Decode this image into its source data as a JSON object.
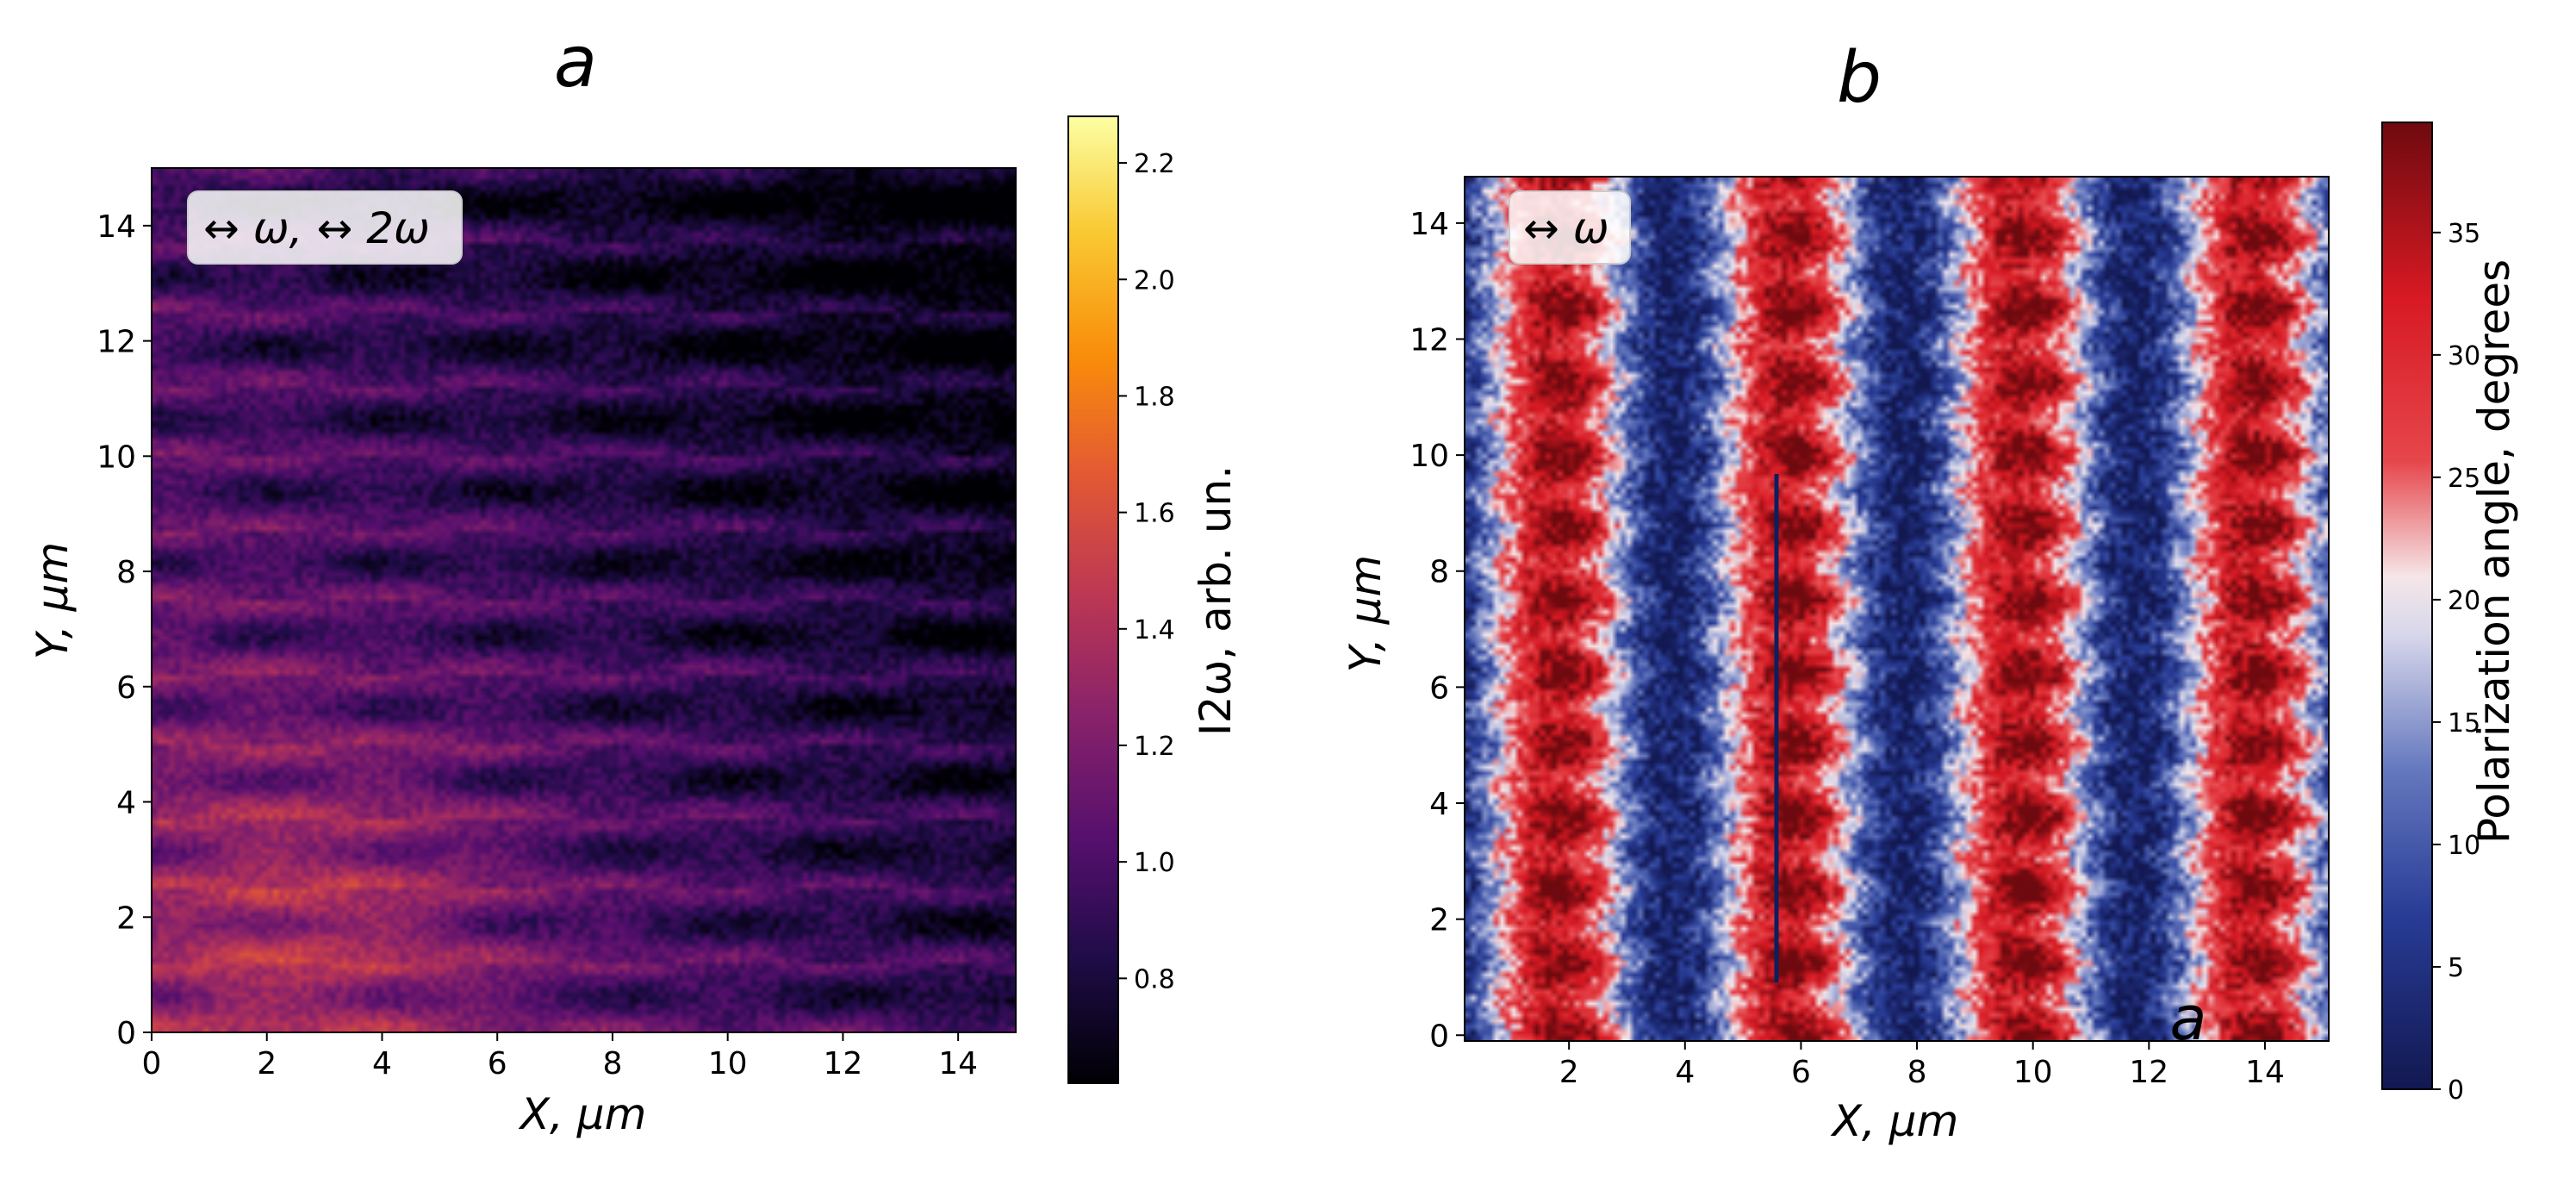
{
  "chart_data": [
    {
      "type": "heatmap",
      "panel_label": "a",
      "title": "",
      "xlabel": "X, μm",
      "ylabel": "Y, μm",
      "xlim": [
        0,
        15
      ],
      "ylim": [
        0,
        15
      ],
      "xticks": [
        "0",
        "2",
        "4",
        "6",
        "8",
        "10",
        "12",
        "14"
      ],
      "yticks": [
        "0",
        "2",
        "4",
        "6",
        "8",
        "10",
        "12",
        "14"
      ],
      "legend_text": "↔ ω, ↔ 2ω",
      "legend_position": "top-left",
      "colormap": "inferno",
      "colorbar": {
        "label": "I2ω, arb. un.",
        "ticks": [
          "0.8",
          "1.0",
          "1.2",
          "1.4",
          "1.6",
          "1.8",
          "2.0",
          "2.2"
        ],
        "range": [
          0.62,
          2.28
        ]
      },
      "pattern": {
        "description": "periodic spot lattice, vertical period ~1.25 μm, horizontal period ~4 μm, brighter toward lower-left",
        "y_period": 1.25,
        "x_period": 4.0
      }
    },
    {
      "type": "heatmap",
      "panel_label": "b",
      "title": "",
      "xlabel": "X, μm",
      "ylabel": "Y, μm",
      "xlim": [
        0.2,
        15.1
      ],
      "ylim": [
        -0.1,
        14.8
      ],
      "xticks": [
        "2",
        "4",
        "6",
        "8",
        "10",
        "12",
        "14"
      ],
      "yticks": [
        "0",
        "2",
        "4",
        "6",
        "8",
        "10",
        "12",
        "14"
      ],
      "legend_text": "↔ ω",
      "legend_position": "top-left",
      "colormap": "seismic-like (blue-white-red)",
      "corner_annotation": "a",
      "colorbar": {
        "label": "Polarization angle, degrees",
        "ticks": [
          "0",
          "5",
          "10",
          "15",
          "20",
          "25",
          "30",
          "35"
        ],
        "range": [
          0,
          39.5
        ]
      },
      "pattern": {
        "description": "vertical stripes alternating blue/red with zigzag edges, stripe period ~4 μm",
        "x_period": 4.0,
        "y_period": 1.25
      }
    }
  ]
}
